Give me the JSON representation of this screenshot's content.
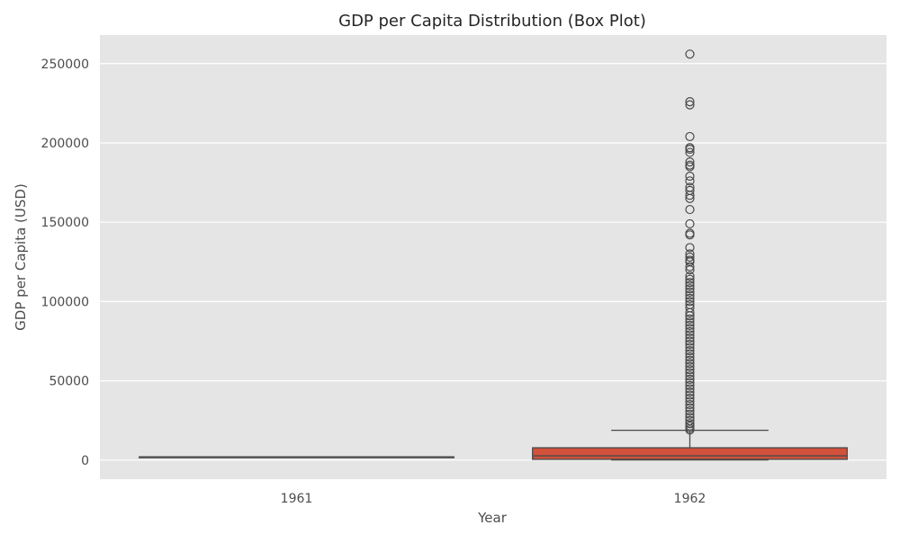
{
  "chart_data": {
    "type": "box",
    "title": "GDP per Capita Distribution (Box Plot)",
    "xlabel": "Year",
    "ylabel": "GDP per Capita (USD)",
    "categories": [
      "1961",
      "1962"
    ],
    "ylim": [
      -12000,
      268000
    ],
    "yticks": [
      0,
      50000,
      100000,
      150000,
      200000,
      250000
    ],
    "ytick_labels": [
      "0",
      "50000",
      "100000",
      "150000",
      "200000",
      "250000"
    ],
    "grid": true,
    "boxes": [
      {
        "category": "1961",
        "min": 2100,
        "q1": 2100,
        "median": 2100,
        "q3": 2100,
        "max": 2100,
        "outliers": []
      },
      {
        "category": "1962",
        "min": 100,
        "q1": 500,
        "median": 2700,
        "q3": 7800,
        "max": 18800,
        "outliers": [
          256000,
          226000,
          224000,
          204000,
          197000,
          196000,
          194000,
          188000,
          186000,
          185000,
          179000,
          176000,
          172000,
          170000,
          167000,
          165000,
          158000,
          149000,
          143000,
          142000,
          134000,
          130000,
          128000,
          126000,
          125000,
          122000,
          120000,
          116000,
          114000,
          112000,
          110000,
          108000,
          106000,
          104000,
          102000,
          100000,
          98000,
          96000,
          93000,
          91000,
          89000,
          87000,
          85000,
          83000,
          81000,
          79000,
          77000,
          75000,
          73000,
          71000,
          69000,
          67000,
          65000,
          63000,
          61000,
          59000,
          57000,
          55000,
          53000,
          51000,
          49000,
          47000,
          45000,
          43000,
          41000,
          39000,
          37000,
          35000,
          33000,
          31000,
          29000,
          27000,
          25000,
          23000,
          21500,
          20000,
          19000
        ]
      }
    ]
  },
  "colors": {
    "plot_background": "#e5e5e5",
    "grid": "#ffffff",
    "box_fill": "#d1513a",
    "line": "#4a4a4a",
    "text": "#4d4d4d"
  }
}
